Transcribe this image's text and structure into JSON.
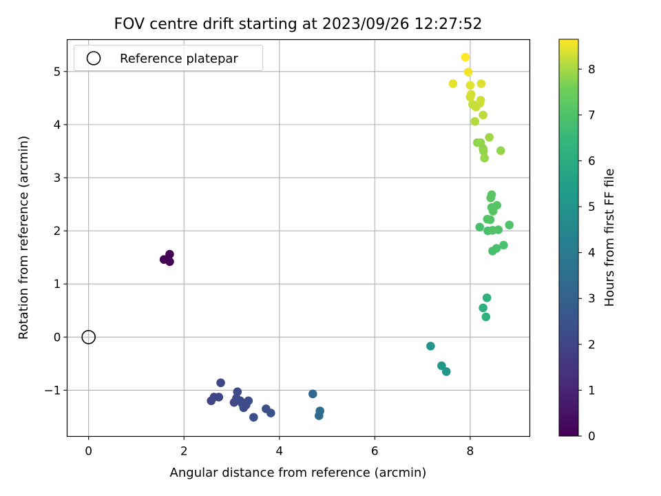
{
  "chart_data": {
    "type": "scatter",
    "title": "FOV centre drift starting at 2023/09/26 12:27:52",
    "xlabel": "Angular distance from reference (arcmin)",
    "ylabel": "Rotation from reference (arcmin)",
    "xlim": [
      -0.45,
      9.25
    ],
    "ylim": [
      -1.87,
      5.6
    ],
    "xticks": [
      0,
      2,
      4,
      6,
      8
    ],
    "xtick_labels": [
      "0",
      "2",
      "4",
      "6",
      "8"
    ],
    "yticks": [
      -1,
      0,
      1,
      2,
      3,
      4,
      5
    ],
    "ytick_labels": [
      "−1",
      "0",
      "1",
      "2",
      "3",
      "4",
      "5"
    ],
    "grid": true,
    "legend": {
      "placement": "top-left",
      "entries": [
        "Reference platepar"
      ]
    },
    "reference_point": {
      "name": "Reference platepar",
      "x": 0,
      "y": 0
    },
    "colorbar": {
      "label": "Hours from first FF file",
      "range": [
        0,
        8.65
      ],
      "ticks": [
        0,
        1,
        2,
        3,
        4,
        5,
        6,
        7,
        8
      ],
      "tick_labels": [
        "0",
        "1",
        "2",
        "3",
        "4",
        "5",
        "6",
        "7",
        "8"
      ],
      "colormap": "viridis"
    },
    "points": [
      {
        "x": 1.58,
        "y": 1.46,
        "hours": 0.05
      },
      {
        "x": 1.7,
        "y": 1.56,
        "hours": 0.1
      },
      {
        "x": 1.7,
        "y": 1.42,
        "hours": 0.15
      },
      {
        "x": 2.57,
        "y": -1.2,
        "hours": 2.05
      },
      {
        "x": 2.63,
        "y": -1.13,
        "hours": 2.0
      },
      {
        "x": 2.73,
        "y": -1.13,
        "hours": 2.05
      },
      {
        "x": 2.77,
        "y": -0.86,
        "hours": 2.1
      },
      {
        "x": 3.05,
        "y": -1.23,
        "hours": 2.1
      },
      {
        "x": 3.1,
        "y": -1.15,
        "hours": 2.15
      },
      {
        "x": 3.12,
        "y": -1.03,
        "hours": 2.15
      },
      {
        "x": 3.18,
        "y": -1.2,
        "hours": 2.2
      },
      {
        "x": 3.22,
        "y": -1.25,
        "hours": 2.2
      },
      {
        "x": 3.25,
        "y": -1.33,
        "hours": 2.25
      },
      {
        "x": 3.3,
        "y": -1.28,
        "hours": 2.25
      },
      {
        "x": 3.35,
        "y": -1.2,
        "hours": 2.3
      },
      {
        "x": 3.46,
        "y": -1.51,
        "hours": 2.35
      },
      {
        "x": 3.72,
        "y": -1.35,
        "hours": 2.4
      },
      {
        "x": 3.82,
        "y": -1.43,
        "hours": 2.45
      },
      {
        "x": 4.7,
        "y": -1.07,
        "hours": 3.25
      },
      {
        "x": 4.83,
        "y": -1.48,
        "hours": 3.35
      },
      {
        "x": 4.85,
        "y": -1.39,
        "hours": 3.4
      },
      {
        "x": 7.17,
        "y": -0.17,
        "hours": 5.05
      },
      {
        "x": 7.4,
        "y": -0.54,
        "hours": 5.15
      },
      {
        "x": 7.5,
        "y": -0.65,
        "hours": 5.2
      },
      {
        "x": 8.27,
        "y": 0.55,
        "hours": 6.15
      },
      {
        "x": 8.35,
        "y": 0.74,
        "hours": 6.2
      },
      {
        "x": 8.33,
        "y": 0.38,
        "hours": 6.25
      },
      {
        "x": 8.2,
        "y": 2.07,
        "hours": 6.85
      },
      {
        "x": 8.37,
        "y": 2.0,
        "hours": 6.9
      },
      {
        "x": 8.47,
        "y": 1.62,
        "hours": 6.85
      },
      {
        "x": 8.55,
        "y": 1.67,
        "hours": 6.9
      },
      {
        "x": 8.7,
        "y": 1.73,
        "hours": 6.95
      },
      {
        "x": 8.82,
        "y": 2.11,
        "hours": 7.0
      },
      {
        "x": 8.47,
        "y": 2.01,
        "hours": 7.05
      },
      {
        "x": 8.59,
        "y": 2.02,
        "hours": 7.0
      },
      {
        "x": 8.36,
        "y": 2.22,
        "hours": 7.05
      },
      {
        "x": 8.42,
        "y": 2.21,
        "hours": 7.1
      },
      {
        "x": 8.45,
        "y": 2.44,
        "hours": 7.1
      },
      {
        "x": 8.48,
        "y": 2.37,
        "hours": 7.15
      },
      {
        "x": 8.56,
        "y": 2.48,
        "hours": 7.15
      },
      {
        "x": 8.43,
        "y": 2.62,
        "hours": 7.2
      },
      {
        "x": 8.45,
        "y": 2.68,
        "hours": 7.2
      },
      {
        "x": 8.15,
        "y": 3.66,
        "hours": 7.8
      },
      {
        "x": 8.22,
        "y": 3.66,
        "hours": 7.85
      },
      {
        "x": 8.27,
        "y": 3.55,
        "hours": 7.8
      },
      {
        "x": 8.28,
        "y": 3.5,
        "hours": 7.85
      },
      {
        "x": 8.3,
        "y": 3.37,
        "hours": 7.9
      },
      {
        "x": 8.4,
        "y": 3.76,
        "hours": 7.95
      },
      {
        "x": 8.64,
        "y": 3.51,
        "hours": 7.85
      },
      {
        "x": 8.1,
        "y": 4.06,
        "hours": 8.1
      },
      {
        "x": 8.27,
        "y": 4.18,
        "hours": 8.15
      },
      {
        "x": 8.05,
        "y": 4.38,
        "hours": 8.2
      },
      {
        "x": 8.12,
        "y": 4.33,
        "hours": 8.25
      },
      {
        "x": 8.2,
        "y": 4.4,
        "hours": 8.25
      },
      {
        "x": 8.22,
        "y": 4.46,
        "hours": 8.3
      },
      {
        "x": 8.0,
        "y": 4.52,
        "hours": 8.3
      },
      {
        "x": 8.02,
        "y": 4.57,
        "hours": 8.35
      },
      {
        "x": 7.64,
        "y": 4.77,
        "hours": 8.45
      },
      {
        "x": 8.0,
        "y": 4.74,
        "hours": 8.45
      },
      {
        "x": 8.23,
        "y": 4.77,
        "hours": 8.4
      },
      {
        "x": 7.96,
        "y": 4.99,
        "hours": 8.55
      },
      {
        "x": 7.9,
        "y": 5.27,
        "hours": 8.65
      }
    ]
  }
}
